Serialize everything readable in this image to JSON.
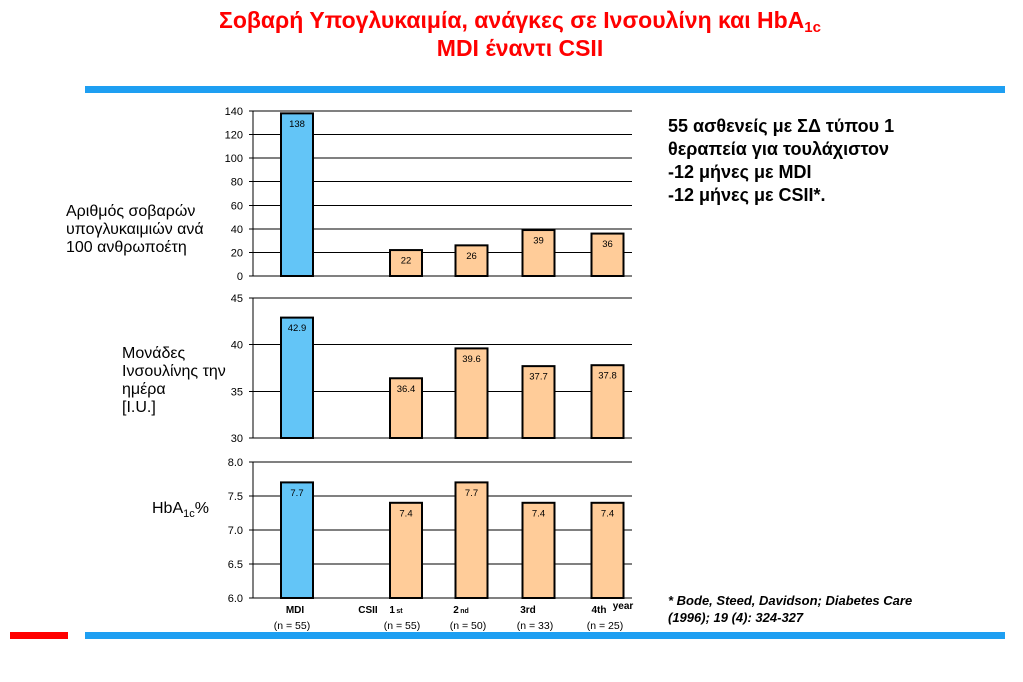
{
  "title": {
    "line1": "Σοβαρή Υπογλυκαιμία, ανάγκες σε Ινσουλίνη και HbA",
    "line1_subscript": "1c",
    "line2": "MDI έναντι CSII"
  },
  "study_description": [
    "55 ασθενείς με ΣΔ τύπου 1",
    "θεραπεία για τουλάχιστον",
    "-12 μήνες με MDI",
    "-12 μήνες με CSII*."
  ],
  "footnote": [
    "* Bode, Steed, Davidson; Diabetes Care",
    "(1996); 19 (4): 324-327"
  ],
  "colors": {
    "title": "#ff0000",
    "rule": "#1e9ff2",
    "accent": "#ff0000"
  },
  "chart_data": {
    "type": "bar",
    "categories": [
      "MDI",
      "1st",
      "2nd",
      "3rd",
      "4th"
    ],
    "group_label": "CSII",
    "x_unit": "year",
    "sample_sizes": [
      "(n = 55)",
      "(n = 55)",
      "(n = 50)",
      "(n = 33)",
      "(n = 25)"
    ],
    "bar_colors": [
      "#63c5f7",
      "#ffcc99",
      "#ffcc99",
      "#ffcc99",
      "#ffcc99"
    ],
    "grid": true,
    "panels": [
      {
        "ylabel": [
          "Αριθμός σοβαρών",
          "υπογλυκαιμιών ανά",
          "100 ανθρωποέτη"
        ],
        "ylim": [
          0,
          140
        ],
        "yticks": [
          "0",
          "20",
          "40",
          "60",
          "80",
          "100",
          "120",
          "140"
        ],
        "values": [
          138,
          22,
          26,
          39,
          36
        ]
      },
      {
        "ylabel": [
          "Μονάδες",
          "Ινσουλίνης την",
          "ημέρα",
          "[I.U.]"
        ],
        "ylim": [
          30,
          45
        ],
        "yticks": [
          "30",
          "35",
          "40",
          "45"
        ],
        "values": [
          42.9,
          36.4,
          39.6,
          37.7,
          37.8
        ]
      },
      {
        "ylabel": {
          "base": "HbA",
          "subscript": "1c",
          "suffix": "%"
        },
        "ylim": [
          6.0,
          8.0
        ],
        "yticks": [
          "6.0",
          "6.5",
          "7.0",
          "7.5",
          "8.0"
        ],
        "values": [
          7.7,
          7.4,
          7.7,
          7.4,
          7.4
        ]
      }
    ]
  }
}
